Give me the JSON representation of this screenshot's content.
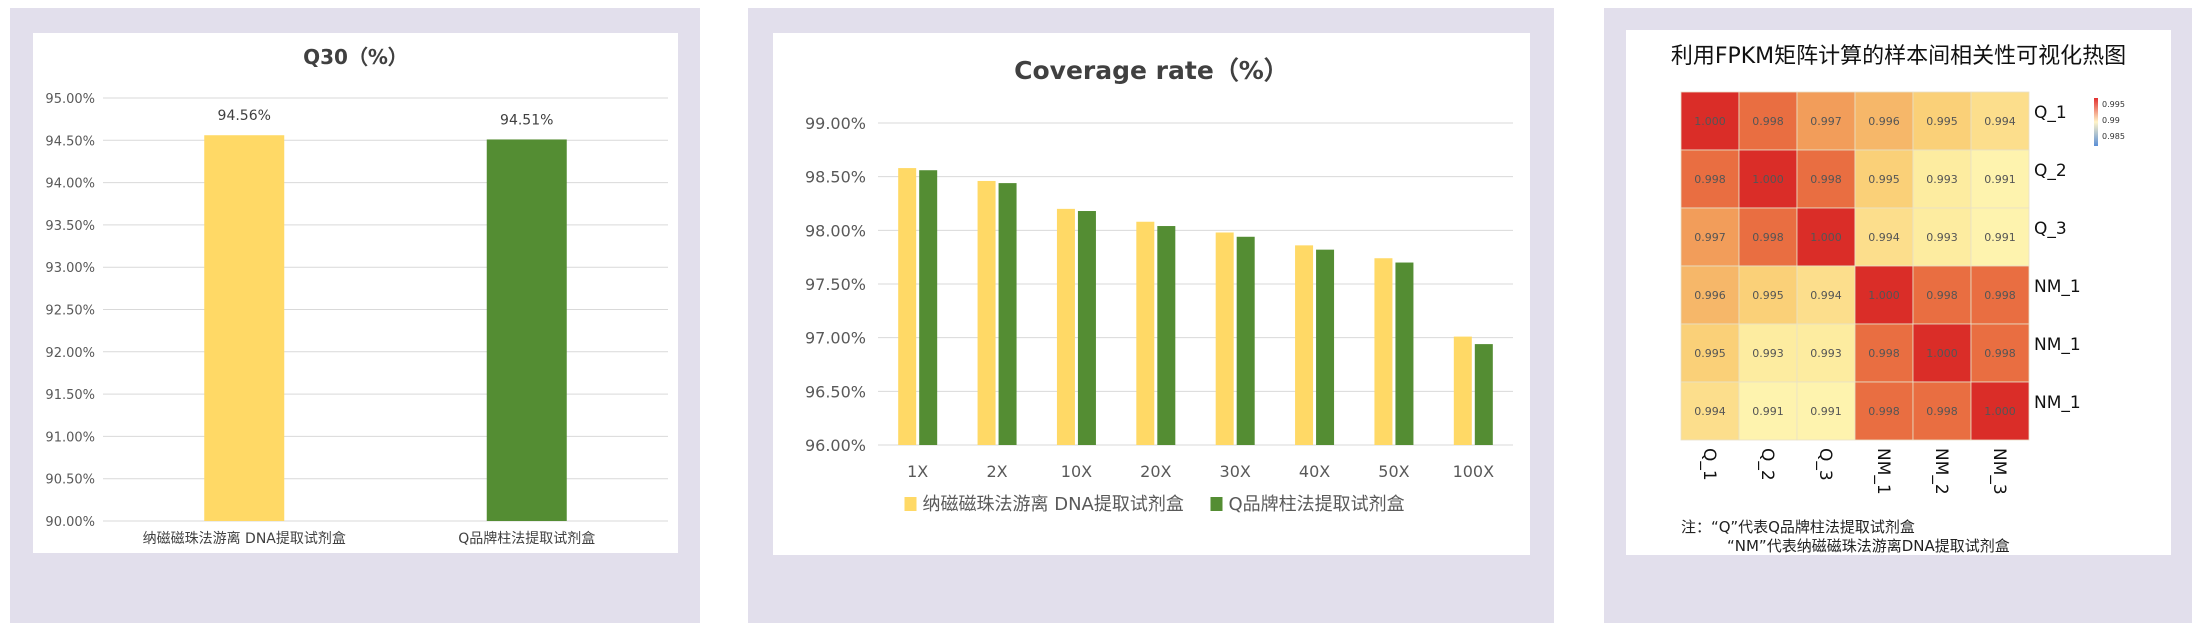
{
  "chart_data": [
    {
      "type": "bar",
      "title": "Q30（%）",
      "categories": [
        "纳磁磁珠法游离 DNA提取试剂盒",
        "Q品牌柱法提取试剂盒"
      ],
      "values": [
        94.56,
        94.51
      ],
      "data_labels": [
        "94.56%",
        "94.51%"
      ],
      "colors": [
        "#ffd966",
        "#548d33"
      ],
      "ylim": [
        90.0,
        95.0
      ],
      "yticks": [
        "90.00%",
        "90.50%",
        "91.00%",
        "91.50%",
        "92.00%",
        "92.50%",
        "93.00%",
        "93.50%",
        "94.00%",
        "94.50%",
        "95.00%"
      ],
      "grid": true
    },
    {
      "type": "bar",
      "title": "Coverage rate（%）",
      "categories": [
        "1X",
        "2X",
        "10X",
        "20X",
        "30X",
        "40X",
        "50X",
        "100X"
      ],
      "series": [
        {
          "name": "纳磁磁珠法游离 DNA提取试剂盒",
          "color": "#ffd966",
          "values": [
            98.58,
            98.46,
            98.2,
            98.08,
            97.98,
            97.86,
            97.74,
            97.01
          ]
        },
        {
          "name": "Q品牌柱法提取试剂盒",
          "color": "#548d33",
          "values": [
            98.56,
            98.44,
            98.18,
            98.04,
            97.94,
            97.82,
            97.7,
            96.94
          ]
        }
      ],
      "ylim": [
        96.0,
        99.0
      ],
      "yticks": [
        "96.00%",
        "96.50%",
        "97.00%",
        "97.50%",
        "98.00%",
        "98.50%",
        "99.00%"
      ],
      "grid": true,
      "legend": "bottom"
    },
    {
      "type": "heatmap",
      "title": "利用FPKM矩阵计算的样本间相关性可视化热图",
      "rows": [
        "Q_1",
        "Q_2",
        "Q_3",
        "NM_1",
        "NM_1",
        "NM_1"
      ],
      "cols": [
        "Q_1",
        "Q_2",
        "Q_3",
        "NM_1",
        "NM_2",
        "NM_3"
      ],
      "cell_labels": [
        [
          "1.000",
          "0.998",
          "0.997",
          "0.996",
          "0.995",
          "0.994"
        ],
        [
          "0.998",
          "1.000",
          "0.998",
          "0.995",
          "0.993",
          "0.991"
        ],
        [
          "0.997",
          "0.998",
          "1.000",
          "0.994",
          "0.993",
          "0.991"
        ],
        [
          "0.996",
          "0.995",
          "0.994",
          "1.000",
          "0.998",
          "0.998"
        ],
        [
          "0.995",
          "0.993",
          "0.993",
          "0.998",
          "1.000",
          "0.998"
        ],
        [
          "0.994",
          "0.991",
          "0.991",
          "0.998",
          "0.998",
          "1.000"
        ]
      ],
      "colorbar_ticks": [
        "0.995",
        "0.99",
        "0.985"
      ],
      "notes": [
        "注：“Q”代表Q品牌柱法提取试剂盒",
        "“NM”代表纳磁磁珠法游离DNA提取试剂盒"
      ]
    }
  ]
}
